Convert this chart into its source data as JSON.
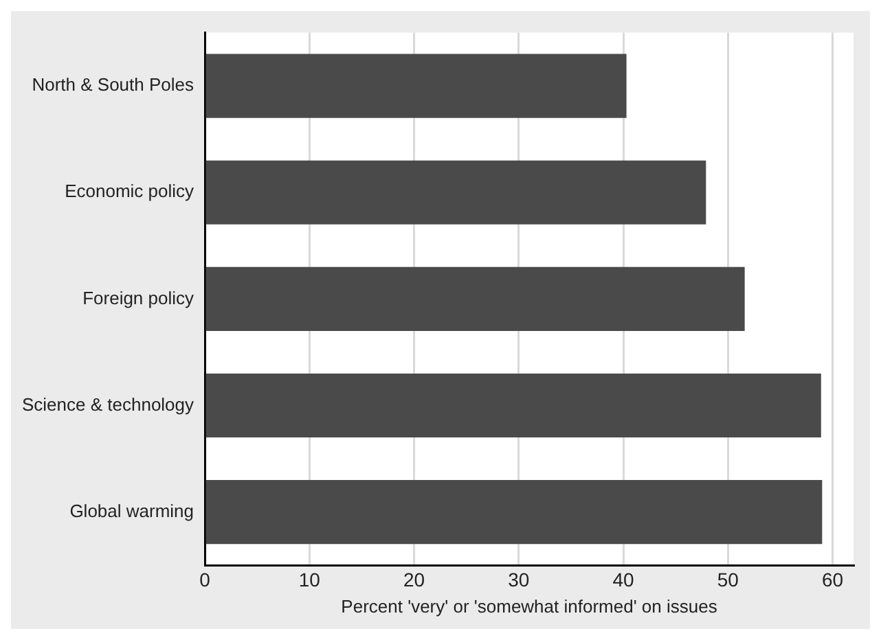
{
  "chart_data": {
    "type": "bar",
    "orientation": "horizontal",
    "xlabel": "Percent 'very' or 'somewhat informed' on issues",
    "categories": [
      "North & South Poles",
      "Economic policy",
      "Foreign policy",
      "Science & technology",
      "Global warming"
    ],
    "values": [
      40.3,
      47.9,
      51.6,
      58.9,
      59.0
    ],
    "color": "#4a4a4a",
    "xlim": [
      0,
      62
    ],
    "xticks": [
      0,
      10,
      20,
      30,
      40,
      50,
      60
    ],
    "grid": "x"
  }
}
